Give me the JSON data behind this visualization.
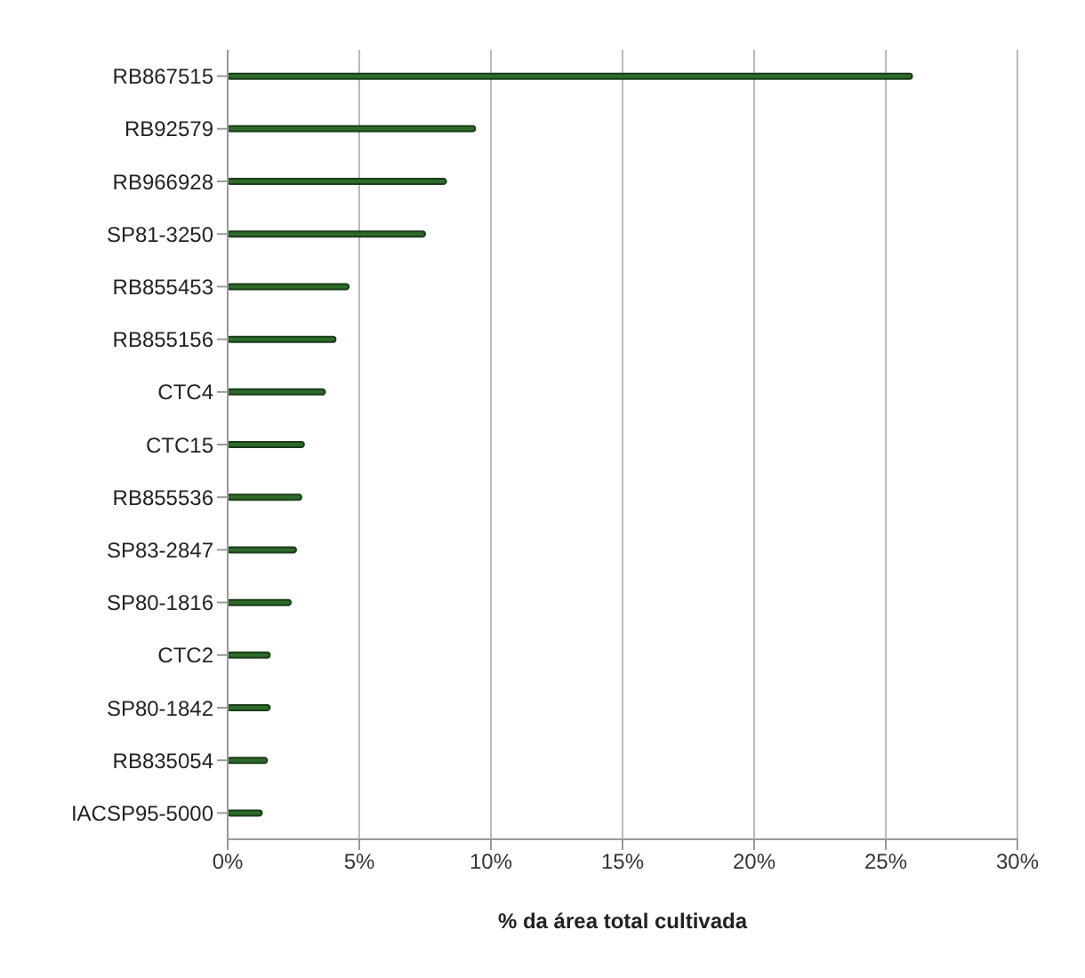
{
  "chart_data": {
    "type": "bar",
    "orientation": "horizontal",
    "xlabel": "% da área total cultivada",
    "categories": [
      "RB867515",
      "RB92579",
      "RB966928",
      "SP81-3250",
      "RB855453",
      "RB855156",
      "CTC4",
      "CTC15",
      "RB855536",
      "SP83-2847",
      "SP80-1816",
      "CTC2",
      "SP80-1842",
      "RB835054",
      "IACSP95-5000"
    ],
    "values": [
      26,
      9.4,
      8.3,
      7.5,
      4.6,
      4.1,
      3.7,
      2.9,
      2.8,
      2.6,
      2.4,
      1.6,
      1.6,
      1.5,
      1.3
    ],
    "color": "#2e6b2a",
    "xlim": [
      0,
      30
    ],
    "xticks": [
      {
        "value": 0,
        "label": "0%"
      },
      {
        "value": 5,
        "label": "5%"
      },
      {
        "value": 10,
        "label": "10%"
      },
      {
        "value": 15,
        "label": "15%"
      },
      {
        "value": 20,
        "label": "20%"
      },
      {
        "value": 25,
        "label": "25%"
      },
      {
        "value": 30,
        "label": "30%"
      }
    ],
    "grid": "x",
    "legend": false
  }
}
